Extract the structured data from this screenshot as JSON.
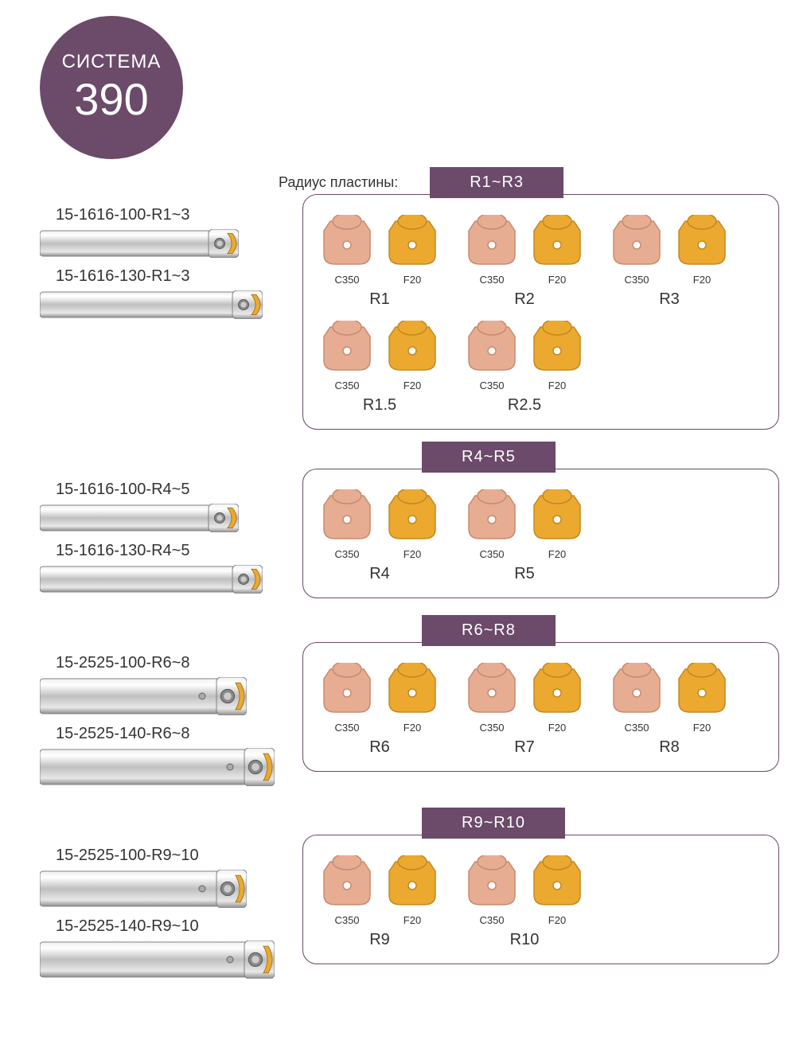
{
  "colors": {
    "badge_bg": "#6b4a6a",
    "range_bg": "#6b4a6a",
    "panel_border": "#6b4a6a",
    "insert_pink": "#e7ad93",
    "insert_pink_stroke": "#c98a6f",
    "insert_gold": "#eba930",
    "insert_gold_stroke": "#c48820",
    "tool_body": "#cfcfcf",
    "tool_body_dark": "#9a9a9a",
    "tool_tip": "#eba930"
  },
  "badge": {
    "top": "СИСТЕМА",
    "num": "390"
  },
  "radius_label": "Радиус пластины:",
  "sections": [
    {
      "range": "R1~R3",
      "show_radius_label": true,
      "tools": [
        {
          "label": "15-1616-100-R1~3",
          "length": 250,
          "style": "narrow"
        },
        {
          "label": "15-1616-130-R1~3",
          "length": 280,
          "style": "narrow"
        }
      ],
      "rows": [
        [
          {
            "r": "R1",
            "items": [
              {
                "code": "C350",
                "color": "pink"
              },
              {
                "code": "F20",
                "color": "gold"
              }
            ]
          },
          {
            "r": "R2",
            "items": [
              {
                "code": "C350",
                "color": "pink"
              },
              {
                "code": "F20",
                "color": "gold"
              }
            ]
          },
          {
            "r": "R3",
            "items": [
              {
                "code": "C350",
                "color": "pink"
              },
              {
                "code": "F20",
                "color": "gold"
              }
            ]
          }
        ],
        [
          {
            "r": "R1.5",
            "items": [
              {
                "code": "C350",
                "color": "pink"
              },
              {
                "code": "F20",
                "color": "gold"
              }
            ]
          },
          {
            "r": "R2.5",
            "items": [
              {
                "code": "C350",
                "color": "pink"
              },
              {
                "code": "F20",
                "color": "gold"
              }
            ]
          }
        ]
      ]
    },
    {
      "range": "R4~R5",
      "tools": [
        {
          "label": "15-1616-100-R4~5",
          "length": 250,
          "style": "narrow"
        },
        {
          "label": "15-1616-130-R4~5",
          "length": 280,
          "style": "narrow"
        }
      ],
      "rows": [
        [
          {
            "r": "R4",
            "items": [
              {
                "code": "C350",
                "color": "pink"
              },
              {
                "code": "F20",
                "color": "gold"
              }
            ]
          },
          {
            "r": "R5",
            "items": [
              {
                "code": "C350",
                "color": "pink"
              },
              {
                "code": "F20",
                "color": "gold"
              }
            ]
          }
        ]
      ]
    },
    {
      "range": "R6~R8",
      "tools": [
        {
          "label": "15-2525-100-R6~8",
          "length": 260,
          "style": "wide"
        },
        {
          "label": "15-2525-140-R6~8",
          "length": 295,
          "style": "wide"
        }
      ],
      "rows": [
        [
          {
            "r": "R6",
            "items": [
              {
                "code": "C350",
                "color": "pink"
              },
              {
                "code": "F20",
                "color": "gold"
              }
            ]
          },
          {
            "r": "R7",
            "items": [
              {
                "code": "C350",
                "color": "pink"
              },
              {
                "code": "F20",
                "color": "gold"
              }
            ]
          },
          {
            "r": "R8",
            "items": [
              {
                "code": "C350",
                "color": "pink"
              },
              {
                "code": "F20",
                "color": "gold"
              }
            ]
          }
        ]
      ]
    },
    {
      "range": "R9~R10",
      "tools": [
        {
          "label": "15-2525-100-R9~10",
          "length": 260,
          "style": "wide"
        },
        {
          "label": "15-2525-140-R9~10",
          "length": 295,
          "style": "wide"
        }
      ],
      "rows": [
        [
          {
            "r": "R9",
            "items": [
              {
                "code": "C350",
                "color": "pink"
              },
              {
                "code": "F20",
                "color": "gold"
              }
            ]
          },
          {
            "r": "R10",
            "items": [
              {
                "code": "C350",
                "color": "pink"
              },
              {
                "code": "F20",
                "color": "gold"
              }
            ]
          }
        ]
      ]
    }
  ]
}
